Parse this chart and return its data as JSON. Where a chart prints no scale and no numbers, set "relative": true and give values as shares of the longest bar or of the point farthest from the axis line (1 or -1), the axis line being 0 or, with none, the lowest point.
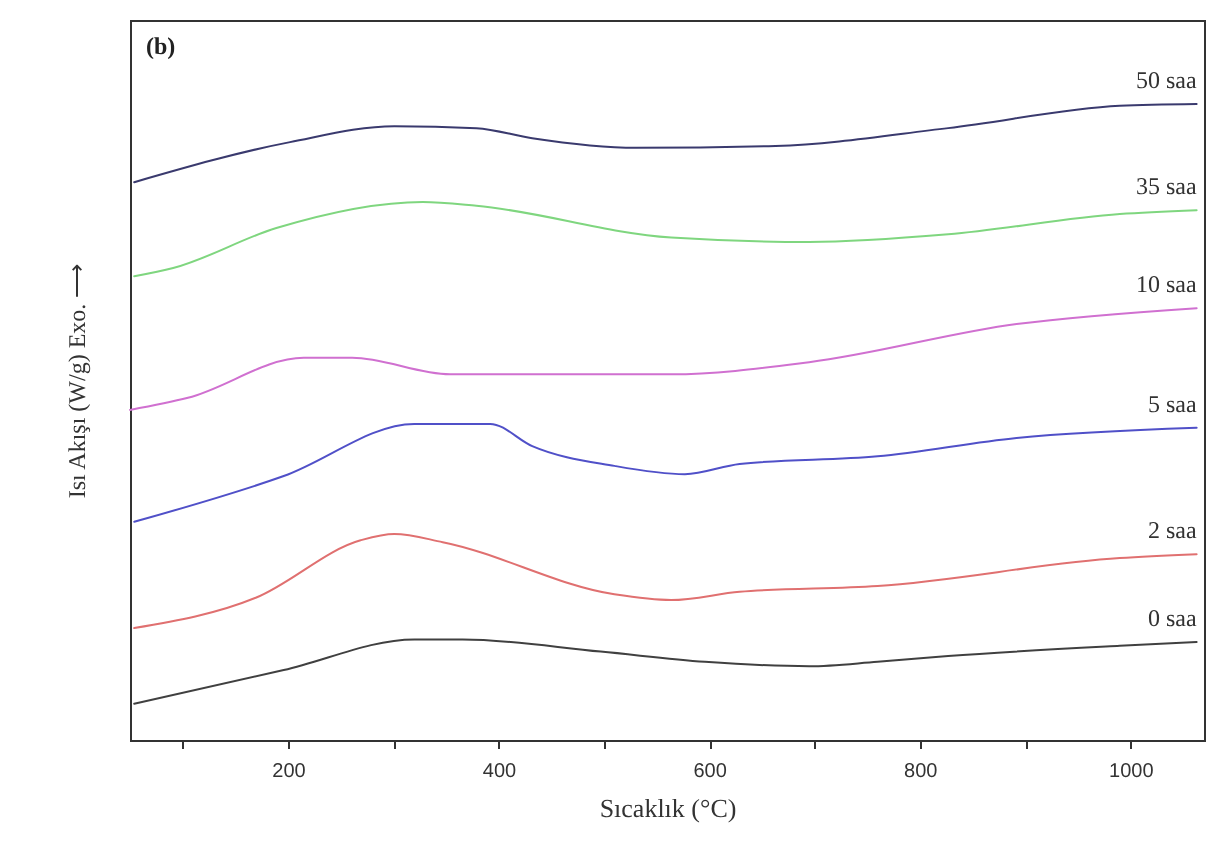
{
  "chart_data": {
    "type": "line",
    "relative": true,
    "xlabel": "Sıcaklık (°C)",
    "ylabel": "Isı Akışı (W/g) Exo. ⟶",
    "annotations": [
      "(b)"
    ],
    "xlim": [
      50,
      1070
    ],
    "xticks": [
      {
        "value": 100,
        "label": null
      },
      200,
      {
        "value": 300,
        "label": null
      },
      400,
      {
        "value": 500,
        "label": null
      },
      600,
      {
        "value": 700,
        "label": null
      },
      800,
      {
        "value": 900,
        "label": null
      },
      1000
    ],
    "grid": false,
    "legend": false,
    "line_style": "solid",
    "series": [
      {
        "name": "50 saa",
        "color": "#3a3a6e",
        "x": [
          54,
          202,
          301,
          379,
          432,
          531,
          663,
          827,
          990,
          1063
        ],
        "values": [
          0.877,
          0.94,
          0.965,
          0.962,
          0.946,
          0.931,
          0.934,
          0.962,
          0.997,
          1.0
        ]
      },
      {
        "name": "35 saa",
        "color": "#7fd67f",
        "x": [
          54,
          91,
          189,
          328,
          379,
          564,
          695,
          827,
          990,
          1063
        ],
        "values": [
          0.729,
          0.742,
          0.805,
          0.846,
          0.84,
          0.79,
          0.783,
          0.795,
          0.827,
          0.833
        ]
      },
      {
        "name": "10 saa",
        "color": "#d070d0",
        "x": [
          50,
          105,
          215,
          261,
          354,
          564,
          695,
          892,
          1063
        ],
        "values": [
          0.519,
          0.538,
          0.601,
          0.601,
          0.575,
          0.575,
          0.594,
          0.654,
          0.679
        ]
      },
      {
        "name": "5 saa",
        "color": "#5050c8",
        "x": [
          54,
          196,
          320,
          392,
          432,
          510,
          577,
          629,
          760,
          892,
          1063
        ],
        "values": [
          0.343,
          0.415,
          0.497,
          0.497,
          0.462,
          0.431,
          0.418,
          0.434,
          0.446,
          0.475,
          0.491
        ]
      },
      {
        "name": "2 saa",
        "color": "#e07070",
        "x": [
          54,
          170,
          269,
          301,
          347,
          510,
          564,
          629,
          760,
          990,
          1063
        ],
        "values": [
          0.176,
          0.224,
          0.314,
          0.324,
          0.311,
          0.229,
          0.22,
          0.233,
          0.242,
          0.286,
          0.292
        ]
      },
      {
        "name": "0 saa",
        "color": "#404040",
        "x": [
          54,
          196,
          320,
          366,
          497,
          596,
          695,
          760,
          827,
          990,
          1063
        ],
        "values": [
          0.057,
          0.11,
          0.158,
          0.158,
          0.139,
          0.123,
          0.116,
          0.123,
          0.132,
          0.148,
          0.154
        ]
      }
    ]
  }
}
